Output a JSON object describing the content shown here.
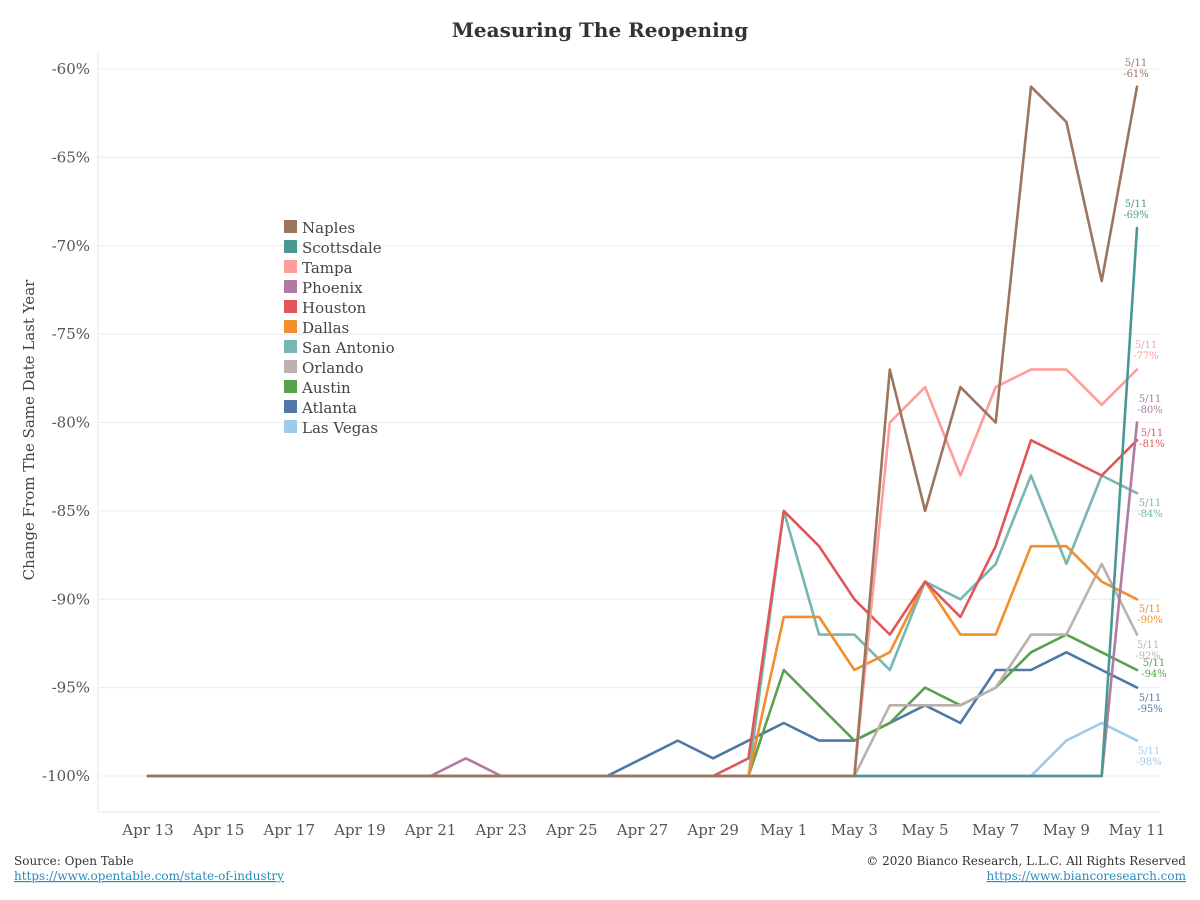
{
  "chart_data": {
    "type": "line",
    "title": "Measuring The Reopening",
    "ylabel": "Change From The Same Date Last Year",
    "ylim": [
      -100,
      -60
    ],
    "yticks": [
      {
        "value": -60,
        "label": "-60%"
      },
      {
        "value": -65,
        "label": "-65%"
      },
      {
        "value": -70,
        "label": "-70%"
      },
      {
        "value": -75,
        "label": "-75%"
      },
      {
        "value": -80,
        "label": "-80%"
      },
      {
        "value": -85,
        "label": "-85%"
      },
      {
        "value": -90,
        "label": "-90%"
      },
      {
        "value": -95,
        "label": "-95%"
      },
      {
        "value": -100,
        "label": "-100%"
      }
    ],
    "x": [
      "2020-04-13",
      "2020-04-14",
      "2020-04-15",
      "2020-04-16",
      "2020-04-17",
      "2020-04-18",
      "2020-04-19",
      "2020-04-20",
      "2020-04-21",
      "2020-04-22",
      "2020-04-23",
      "2020-04-24",
      "2020-04-25",
      "2020-04-26",
      "2020-04-27",
      "2020-04-28",
      "2020-04-29",
      "2020-04-30",
      "2020-05-01",
      "2020-05-02",
      "2020-05-03",
      "2020-05-04",
      "2020-05-05",
      "2020-05-06",
      "2020-05-07",
      "2020-05-08",
      "2020-05-09",
      "2020-05-10",
      "2020-05-11"
    ],
    "xticks": [
      {
        "index": 0,
        "label": "Apr 13"
      },
      {
        "index": 2,
        "label": "Apr 15"
      },
      {
        "index": 4,
        "label": "Apr 17"
      },
      {
        "index": 6,
        "label": "Apr 19"
      },
      {
        "index": 8,
        "label": "Apr 21"
      },
      {
        "index": 10,
        "label": "Apr 23"
      },
      {
        "index": 12,
        "label": "Apr 25"
      },
      {
        "index": 14,
        "label": "Apr 27"
      },
      {
        "index": 16,
        "label": "Apr 29"
      },
      {
        "index": 18,
        "label": "May 1"
      },
      {
        "index": 20,
        "label": "May 3"
      },
      {
        "index": 22,
        "label": "May 5"
      },
      {
        "index": 24,
        "label": "May 7"
      },
      {
        "index": 26,
        "label": "May 9"
      },
      {
        "index": 28,
        "label": "May 11"
      }
    ],
    "grid": "horizontal",
    "legend_position": "upper-left",
    "series": [
      {
        "name": "Las Vegas",
        "color": "#a0cbe8",
        "end_label": [
          "5/11",
          "-98%"
        ],
        "values": [
          -100,
          -100,
          -100,
          -100,
          -100,
          -100,
          -100,
          -100,
          -100,
          -100,
          -100,
          -100,
          -100,
          -100,
          -100,
          -100,
          -100,
          -100,
          -100,
          -100,
          -100,
          -100,
          -100,
          -100,
          -100,
          -100,
          -98,
          -97,
          -98
        ]
      },
      {
        "name": "Atlanta",
        "color": "#4e79a7",
        "end_label": [
          "5/11",
          "-95%"
        ],
        "values": [
          -100,
          -100,
          -100,
          -100,
          -100,
          -100,
          -100,
          -100,
          -100,
          -100,
          -100,
          -100,
          -100,
          -100,
          -99,
          -98,
          -99,
          -98,
          -97,
          -98,
          -98,
          -97,
          -96,
          -97,
          -94,
          -94,
          -93,
          -94,
          -95
        ]
      },
      {
        "name": "Austin",
        "color": "#59a14f",
        "end_label": [
          "5/11",
          "-94%"
        ],
        "values": [
          -100,
          -100,
          -100,
          -100,
          -100,
          -100,
          -100,
          -100,
          -100,
          -100,
          -100,
          -100,
          -100,
          -100,
          -100,
          -100,
          -100,
          -100,
          -94,
          -96,
          -98,
          -97,
          -95,
          -96,
          -95,
          -93,
          -92,
          -93,
          -94
        ]
      },
      {
        "name": "Orlando",
        "color": "#bab0ac",
        "end_label": [
          "5/11",
          "-92%"
        ],
        "values": [
          -100,
          -100,
          -100,
          -100,
          -100,
          -100,
          -100,
          -100,
          -100,
          -100,
          -100,
          -100,
          -100,
          -100,
          -100,
          -100,
          -100,
          -100,
          -100,
          -100,
          -100,
          -96,
          -96,
          -96,
          -95,
          -92,
          -92,
          -88,
          -92
        ]
      },
      {
        "name": "San Antonio",
        "color": "#76b7b2",
        "end_label": [
          "5/11",
          "-84%"
        ],
        "values": [
          -100,
          -100,
          -100,
          -100,
          -100,
          -100,
          -100,
          -100,
          -100,
          -100,
          -100,
          -100,
          -100,
          -100,
          -100,
          -100,
          -100,
          -100,
          -85,
          -92,
          -92,
          -94,
          -89,
          -90,
          -88,
          -83,
          -88,
          -83,
          -84
        ]
      },
      {
        "name": "Dallas",
        "color": "#f28e2b",
        "end_label": [
          "5/11",
          "-90%"
        ],
        "values": [
          -100,
          -100,
          -100,
          -100,
          -100,
          -100,
          -100,
          -100,
          -100,
          -100,
          -100,
          -100,
          -100,
          -100,
          -100,
          -100,
          -100,
          -100,
          -91,
          -91,
          -94,
          -93,
          -89,
          -92,
          -92,
          -87,
          -87,
          -89,
          -90
        ]
      },
      {
        "name": "Houston",
        "color": "#e15759",
        "end_label": [
          "5/11",
          "-81%"
        ],
        "values": [
          -100,
          -100,
          -100,
          -100,
          -100,
          -100,
          -100,
          -100,
          -100,
          -100,
          -100,
          -100,
          -100,
          -100,
          -100,
          -100,
          -100,
          -99,
          -85,
          -87,
          -90,
          -92,
          -89,
          -91,
          -87,
          -81,
          -82,
          -83,
          -81
        ]
      },
      {
        "name": "Phoenix",
        "color": "#b07aa1",
        "end_label": [
          "5/11",
          "-80%"
        ],
        "values": [
          -100,
          -100,
          -100,
          -100,
          -100,
          -100,
          -100,
          -100,
          -100,
          -99,
          -100,
          -100,
          -100,
          -100,
          -100,
          -100,
          -100,
          -100,
          -100,
          -100,
          -100,
          -100,
          -100,
          -100,
          -100,
          -100,
          -100,
          -100,
          -80
        ]
      },
      {
        "name": "Tampa",
        "color": "#ff9d9a",
        "end_label": [
          "5/11",
          "-77%"
        ],
        "values": [
          -100,
          -100,
          -100,
          -100,
          -100,
          -100,
          -100,
          -100,
          -100,
          -100,
          -100,
          -100,
          -100,
          -100,
          -100,
          -100,
          -100,
          -100,
          -100,
          -100,
          -100,
          -80,
          -78,
          -83,
          -78,
          -77,
          -77,
          -79,
          -77
        ]
      },
      {
        "name": "Scottsdale",
        "color": "#499894",
        "end_label": [
          "5/11",
          "-69%"
        ],
        "values": [
          -100,
          -100,
          -100,
          -100,
          -100,
          -100,
          -100,
          -100,
          -100,
          -100,
          -100,
          -100,
          -100,
          -100,
          -100,
          -100,
          -100,
          -100,
          -100,
          -100,
          -100,
          -100,
          -100,
          -100,
          -100,
          -100,
          -100,
          -100,
          -69
        ]
      },
      {
        "name": "Naples",
        "color": "#9c755f",
        "end_label": [
          "5/11",
          "-61%"
        ],
        "values": [
          -100,
          -100,
          -100,
          -100,
          -100,
          -100,
          -100,
          -100,
          -100,
          -100,
          -100,
          -100,
          -100,
          -100,
          -100,
          -100,
          -100,
          -100,
          -100,
          -100,
          -100,
          -77,
          -85,
          -78,
          -80,
          -61,
          -63,
          -72,
          -61
        ]
      }
    ],
    "legend_order": [
      "Naples",
      "Scottsdale",
      "Tampa",
      "Phoenix",
      "Houston",
      "Dallas",
      "San Antonio",
      "Orlando",
      "Austin",
      "Atlanta",
      "Las Vegas"
    ]
  },
  "footer": {
    "source_label": "Source: Open Table",
    "source_link": "https://www.opentable.com/state-of-industry",
    "copyright": "© 2020 Bianco Research, L.L.C. All Rights Reserved",
    "site_link": "https://www.biancoresearch.com"
  }
}
